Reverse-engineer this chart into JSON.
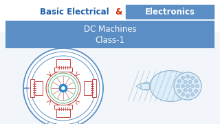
{
  "bg_color": "#f2f6fa",
  "white_top_color": "#ffffff",
  "banner_color": "#5b8ec4",
  "banner_text1": "DC Machines",
  "banner_text2": "Class-1",
  "title_basic": "Basic Electrical",
  "title_amp": "&",
  "title_electronics": "Electronics",
  "title_color_main": "#1a5fa8",
  "title_color_amp": "#cc2200",
  "title_color_elec": "#ffffff",
  "elec_box_color": "#5b8ec4",
  "motor_blue": "#5b8ec4",
  "motor_red": "#c84040",
  "motor_green": "#40a060",
  "center_blue": "#2288cc",
  "wire_blue": "#8ab0cc"
}
